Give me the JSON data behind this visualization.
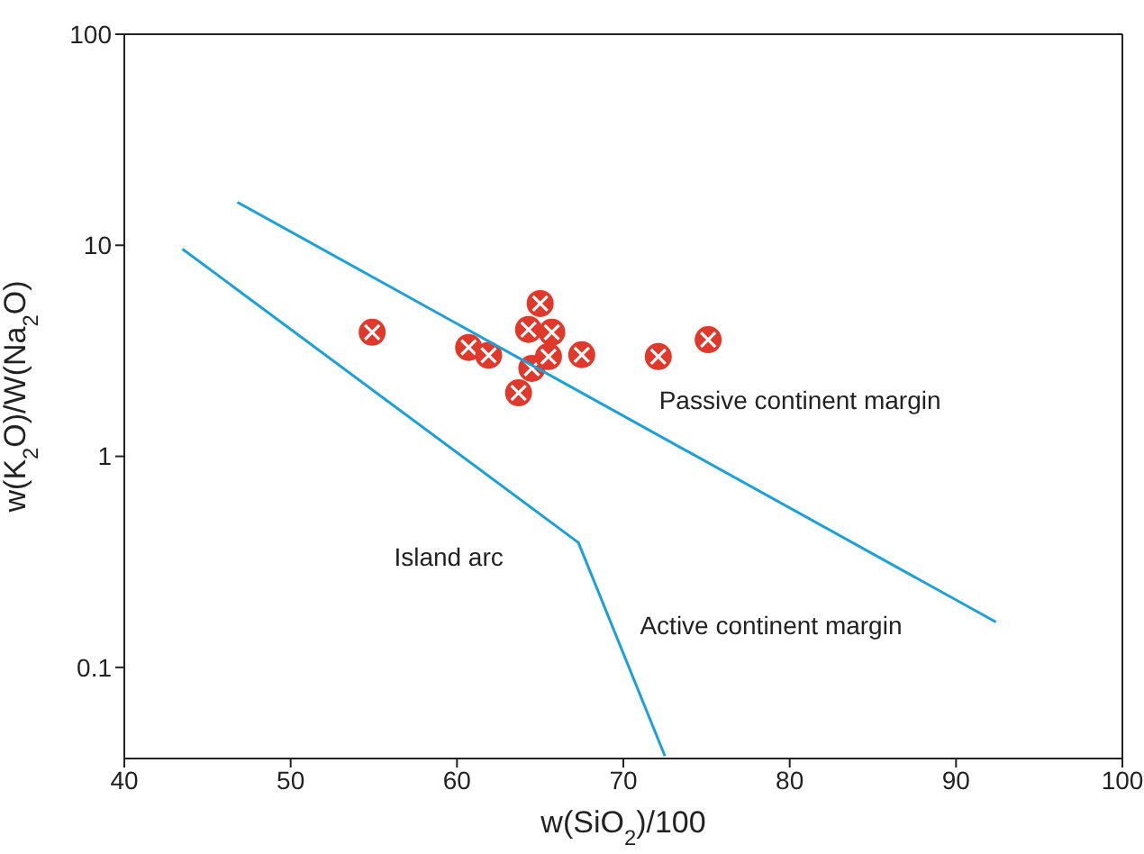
{
  "chart_data": {
    "type": "scatter",
    "xlabel": "w(SiO$_{2}$)/100",
    "ylabel": "w(K$_{2}$O)/W(Na$_{2}$O)",
    "log": "y",
    "xlim": [
      40,
      100
    ],
    "xticks": [
      40,
      50,
      60,
      70,
      80,
      90,
      100
    ],
    "ylim": [
      0.037,
      100
    ],
    "yticks": [
      0.1,
      1,
      10,
      100
    ],
    "series": [
      {
        "marker": "circle",
        "color": "#e0382a",
        "x": [
          54.9,
          60.7,
          61.9,
          63.7,
          64.5,
          64.3,
          65.0,
          65.7,
          65.5,
          67.5,
          72.1,
          75.1
        ],
        "values": [
          3.87,
          3.28,
          3.01,
          2.0,
          2.61,
          3.99,
          5.3,
          3.87,
          2.97,
          3.03,
          2.97,
          3.57
        ]
      },
      {
        "type": "line",
        "marker": "none",
        "line_style": "solid",
        "color": "#1ba1d8",
        "x": [
          46.8,
          92.4
        ],
        "values": [
          16.0,
          0.164
        ]
      },
      {
        "type": "line",
        "marker": "none",
        "line_style": "solid",
        "color": "#1ba1d8",
        "x": [
          43.5,
          67.3,
          72.5
        ],
        "values": [
          9.6,
          0.39,
          0.038
        ]
      }
    ],
    "annotations": [
      "Passive continent margin",
      "Island arc",
      "Active continent margin"
    ]
  }
}
